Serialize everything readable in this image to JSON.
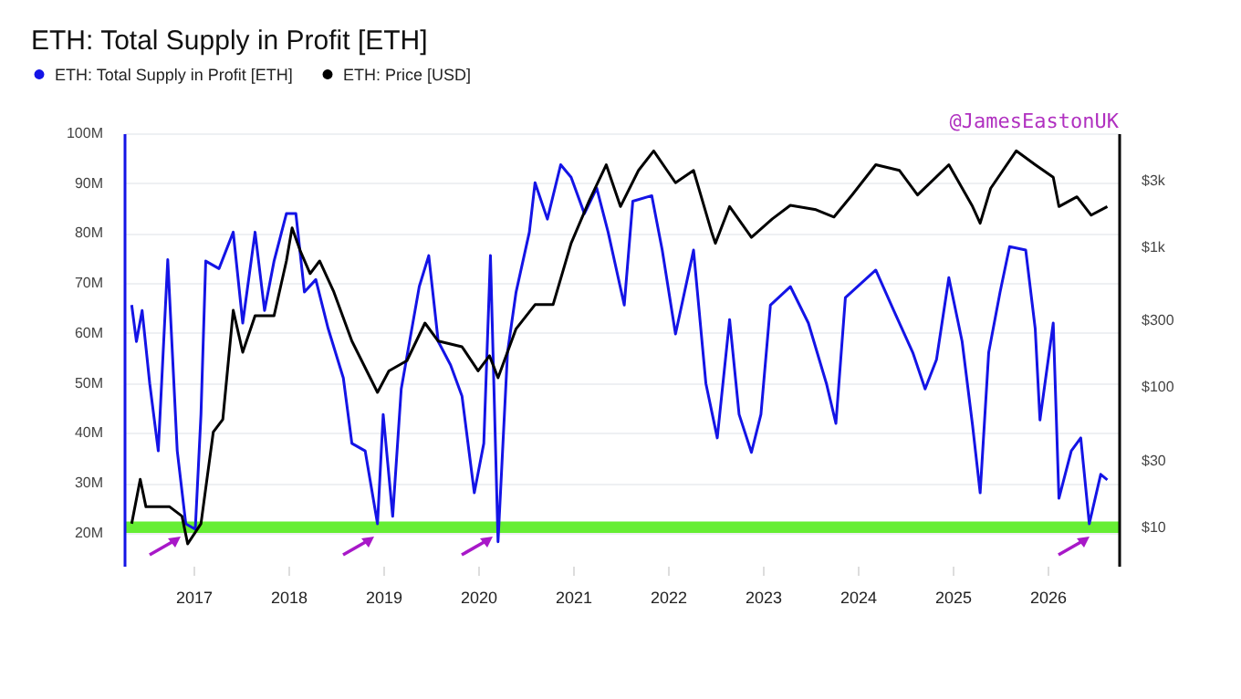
{
  "chart_data": {
    "type": "line",
    "title": "ETH: Total Supply in Profit [ETH]",
    "annotations": [
      "@JamesEastonUK"
    ],
    "xlim": [
      2016.27,
      2026.75
    ],
    "xticks": [
      2017,
      2018,
      2019,
      2020,
      2021,
      2022,
      2023,
      2024,
      2025,
      2026
    ],
    "ylim": [
      13400000,
      100000000
    ],
    "yticks": [
      {
        "value": 20000000,
        "label": "20M"
      },
      {
        "value": 30000000,
        "label": "30M"
      },
      {
        "value": 40000000,
        "label": "40M"
      },
      {
        "value": 50000000,
        "label": "50M"
      },
      {
        "value": 60000000,
        "label": "60M"
      },
      {
        "value": 70000000,
        "label": "70M"
      },
      {
        "value": 80000000,
        "label": "80M"
      },
      {
        "value": 90000000,
        "label": "90M"
      },
      {
        "value": 100000000,
        "label": "100M"
      }
    ],
    "y2lim": [
      5.3,
      6550
    ],
    "y2ticks": [
      {
        "value": 10,
        "label": "$10"
      },
      {
        "value": 30,
        "label": "$30"
      },
      {
        "value": 100,
        "label": "$100"
      },
      {
        "value": 300,
        "label": "$300"
      },
      {
        "value": 1000,
        "label": "$1k"
      },
      {
        "value": 3000,
        "label": "$3k"
      }
    ],
    "log": "y2",
    "grid": "y",
    "legend": "top left",
    "ref_lines": [
      {
        "axis": "y",
        "value": 21000000,
        "color": "#66ee33"
      }
    ],
    "series": [
      {
        "name": "ETH: Total Supply in Profit [ETH]",
        "color": "#1414e6",
        "x": [
          2016.35,
          2016.4,
          2016.46,
          2016.54,
          2016.63,
          2016.73,
          2016.83,
          2016.92,
          2017.02,
          2017.08,
          2017.13,
          2017.27,
          2017.42,
          2017.52,
          2017.65,
          2017.75,
          2017.85,
          2017.98,
          2018.08,
          2018.17,
          2018.29,
          2018.42,
          2018.58,
          2018.67,
          2018.81,
          2018.94,
          2019.0,
          2019.1,
          2019.19,
          2019.38,
          2019.48,
          2019.58,
          2019.71,
          2019.83,
          2019.96,
          2020.06,
          2020.13,
          2020.21,
          2020.31,
          2020.4,
          2020.54,
          2020.6,
          2020.73,
          2020.87,
          2020.98,
          2021.12,
          2021.25,
          2021.37,
          2021.54,
          2021.63,
          2021.83,
          2021.94,
          2022.08,
          2022.27,
          2022.4,
          2022.52,
          2022.65,
          2022.75,
          2022.88,
          2022.98,
          2023.08,
          2023.29,
          2023.48,
          2023.67,
          2023.77,
          2023.87,
          2024.19,
          2024.38,
          2024.58,
          2024.71,
          2024.83,
          2024.96,
          2025.1,
          2025.21,
          2025.29,
          2025.38,
          2025.5,
          2025.6,
          2025.77,
          2025.87,
          2025.92,
          2026.06,
          2026.12,
          2026.25,
          2026.35,
          2026.44,
          2026.56,
          2026.63
        ],
        "values": [
          65600000,
          58300000,
          64500000,
          49900000,
          36400000,
          74700000,
          36400000,
          21800000,
          20700000,
          43700000,
          74400000,
          72900000,
          80200000,
          62000000,
          80200000,
          64500000,
          74400000,
          83900000,
          83900000,
          68200000,
          70700000,
          60900000,
          51000000,
          37900000,
          36400000,
          21800000,
          43700000,
          23300000,
          48800000,
          69300000,
          75500000,
          58300000,
          53600000,
          47400000,
          28000000,
          37900000,
          75500000,
          18200000,
          56100000,
          68200000,
          80200000,
          90100000,
          82800000,
          93700000,
          91200000,
          83900000,
          89000000,
          80200000,
          65600000,
          86400000,
          87500000,
          76600000,
          59800000,
          76600000,
          49900000,
          39000000,
          62700000,
          43700000,
          36100000,
          43700000,
          65600000,
          69300000,
          62000000,
          49900000,
          41900000,
          67100000,
          72600000,
          64500000,
          56100000,
          48800000,
          54700000,
          71100000,
          58300000,
          41500000,
          28000000,
          56100000,
          68200000,
          77300000,
          76600000,
          60900000,
          42600000,
          62000000,
          26900000,
          36400000,
          39000000,
          21800000,
          31700000,
          30600000
        ]
      },
      {
        "name": "ETH: Price [USD]",
        "color": "#000000",
        "axis": "y2",
        "x": [
          2016.35,
          2016.44,
          2016.5,
          2016.75,
          2016.88,
          2016.94,
          2017.08,
          2017.21,
          2017.31,
          2017.42,
          2017.52,
          2017.65,
          2017.85,
          2017.98,
          2018.04,
          2018.13,
          2018.23,
          2018.33,
          2018.48,
          2018.67,
          2018.94,
          2019.06,
          2019.25,
          2019.44,
          2019.58,
          2019.83,
          2020.0,
          2020.12,
          2020.21,
          2020.4,
          2020.6,
          2020.79,
          2020.98,
          2021.17,
          2021.35,
          2021.5,
          2021.69,
          2021.85,
          2022.08,
          2022.27,
          2022.46,
          2022.5,
          2022.65,
          2022.88,
          2023.1,
          2023.29,
          2023.56,
          2023.75,
          2023.94,
          2024.19,
          2024.44,
          2024.63,
          2024.96,
          2025.21,
          2025.29,
          2025.4,
          2025.67,
          2025.87,
          2026.06,
          2026.12,
          2026.31,
          2026.46,
          2026.63
        ],
        "values": [
          10.6,
          22,
          14,
          14,
          12,
          7.6,
          10.6,
          48,
          59,
          355,
          178,
          325,
          325,
          800,
          1380,
          930,
          650,
          800,
          480,
          214,
          92,
          131,
          155,
          288,
          214,
          195,
          131,
          168,
          117,
          262,
          390,
          390,
          1070,
          2150,
          3900,
          1960,
          3550,
          4900,
          2900,
          3550,
          1290,
          1070,
          1960,
          1180,
          1600,
          2000,
          1860,
          1650,
          2370,
          3900,
          3550,
          2370,
          3900,
          1960,
          1490,
          2640,
          4900,
          3900,
          3170,
          1960,
          2300,
          1700,
          1960
        ]
      }
    ]
  }
}
